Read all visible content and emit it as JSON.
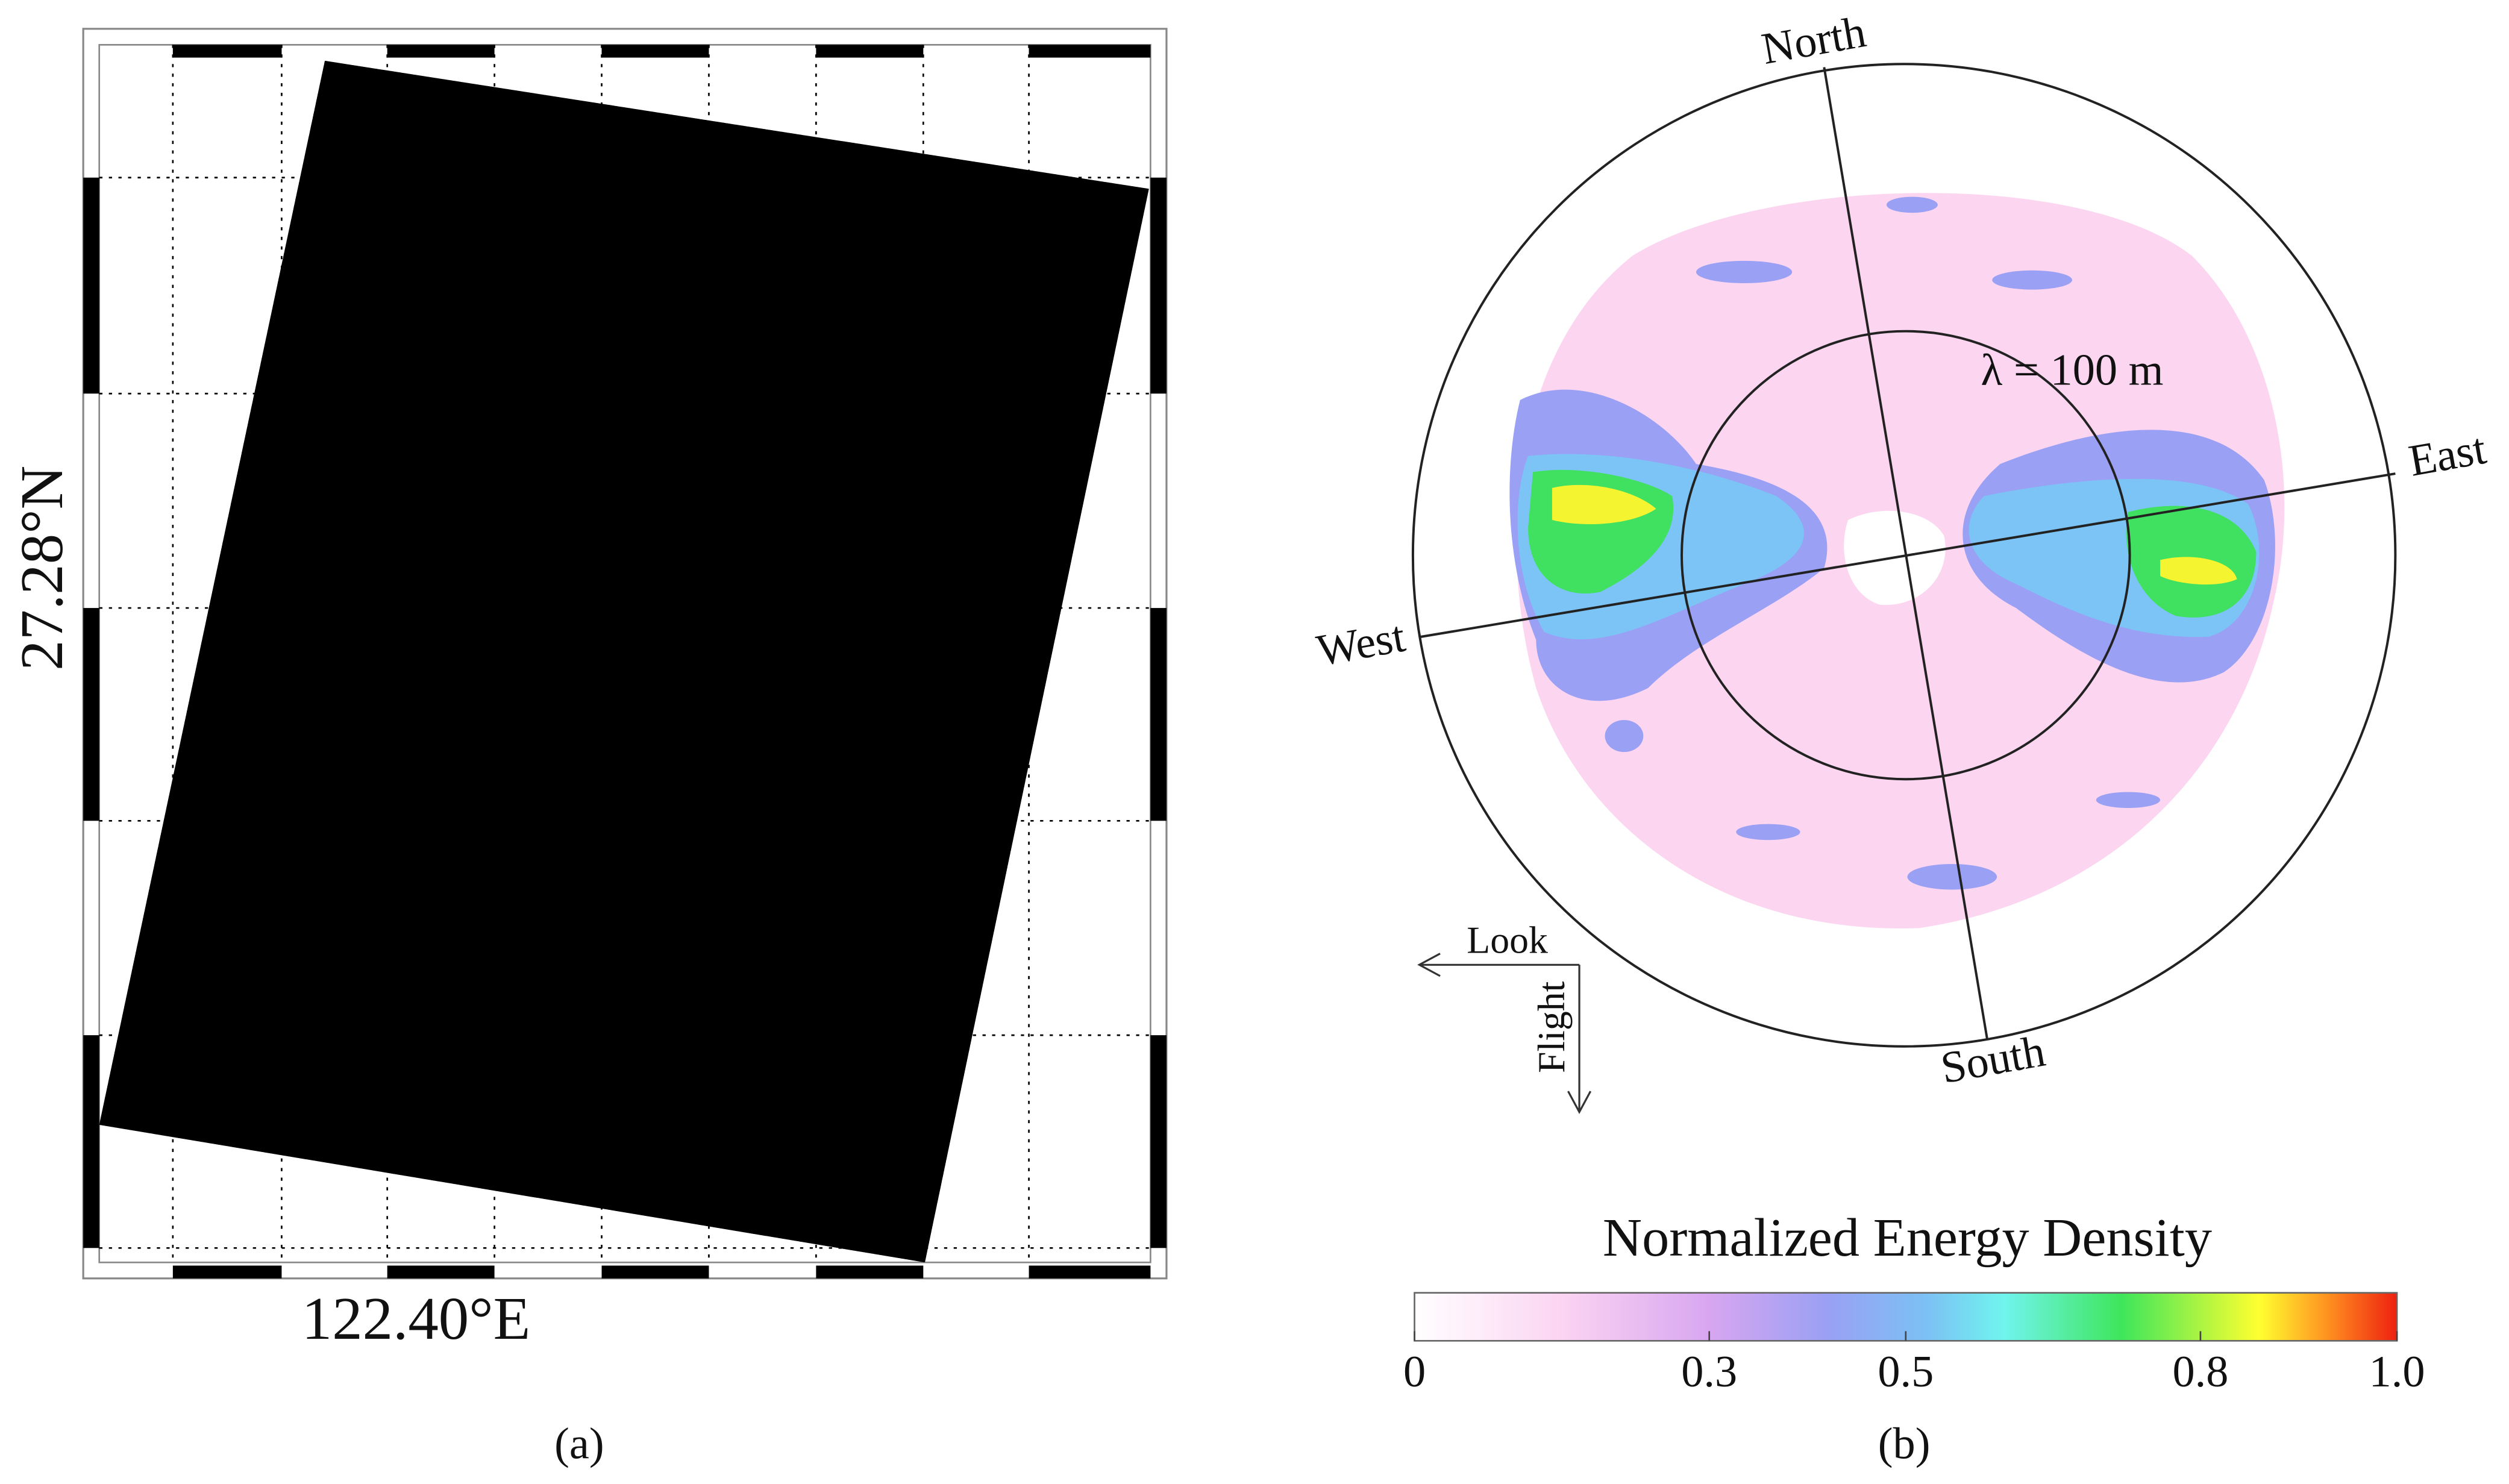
{
  "panel_a": {
    "latitude_label": "27.28°N",
    "longitude_label": "122.40°E",
    "caption": "(a)"
  },
  "panel_b": {
    "north": "North",
    "east": "East",
    "south": "South",
    "west": "West",
    "wavelength_label": "λ = 100 m",
    "look": "Look",
    "flight": "Flight",
    "caption": "(b)",
    "colorbar": {
      "title": "Normalized Energy Density",
      "ticks": [
        0,
        0.3,
        0.5,
        0.8,
        {
          "value": 1,
          "label": "1.0"
        }
      ]
    }
  }
}
